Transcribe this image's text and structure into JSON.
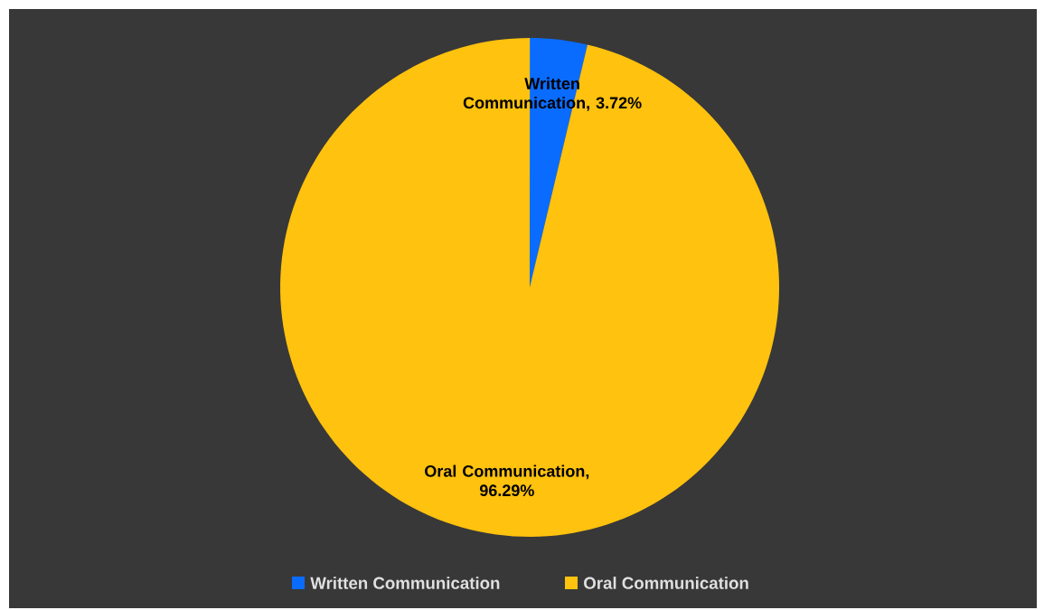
{
  "chart_data": {
    "type": "pie",
    "categories": [
      "Written Communication",
      "Oral Communication"
    ],
    "values": [
      3.72,
      96.29
    ],
    "colors": [
      "#0a6cff",
      "#ffc20e"
    ],
    "value_labels": [
      "Written Communication, 3.72%",
      "Oral Communication, 96.29%"
    ],
    "legend": "bottom"
  }
}
